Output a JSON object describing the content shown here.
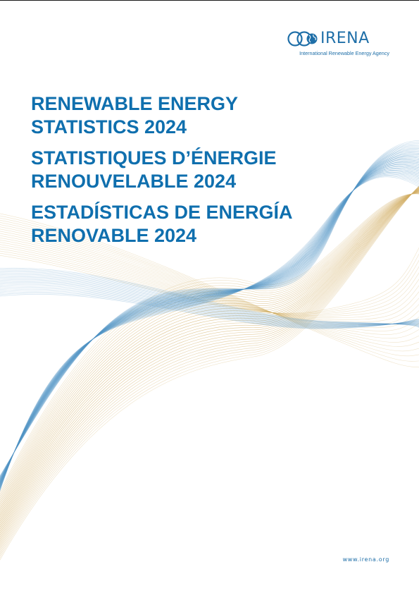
{
  "header": {
    "logo": {
      "wordmark": "IRENA",
      "tagline": "International Renewable Energy Agency",
      "icon": "globe-icon"
    }
  },
  "titles": {
    "english": [
      "RENEWABLE ENERGY",
      "STATISTICS 2024"
    ],
    "french": [
      "STATISTIQUES D’ÉNERGIE",
      "RENOUVELABLE 2024"
    ],
    "spanish": [
      "ESTADÍSTICAS DE ENERGÍA",
      "RENOVABLE 2024"
    ]
  },
  "footer": {
    "url": "www.irena.org"
  },
  "colors": {
    "brand_blue": "#0f6fae",
    "wave_blue": "#4f93c4",
    "wave_gold": "#d2ae64"
  }
}
